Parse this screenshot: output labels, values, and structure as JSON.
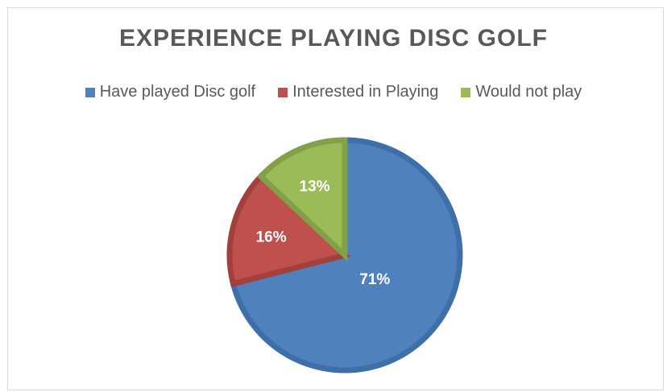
{
  "chart_data": {
    "type": "pie",
    "title": "EXPERIENCE PLAYING DISC GOLF",
    "legend_position": "top",
    "slices": [
      {
        "label": "Have played Disc golf",
        "value": 71,
        "display": "71%",
        "color": "#4f81bd",
        "edge": "#3f6fa8"
      },
      {
        "label": "Interested in Playing",
        "value": 16,
        "display": "16%",
        "color": "#c0504d",
        "edge": "#a2403d"
      },
      {
        "label": "Would not play",
        "value": 13,
        "display": "13%",
        "color": "#9bbb59",
        "edge": "#82a046"
      }
    ]
  }
}
